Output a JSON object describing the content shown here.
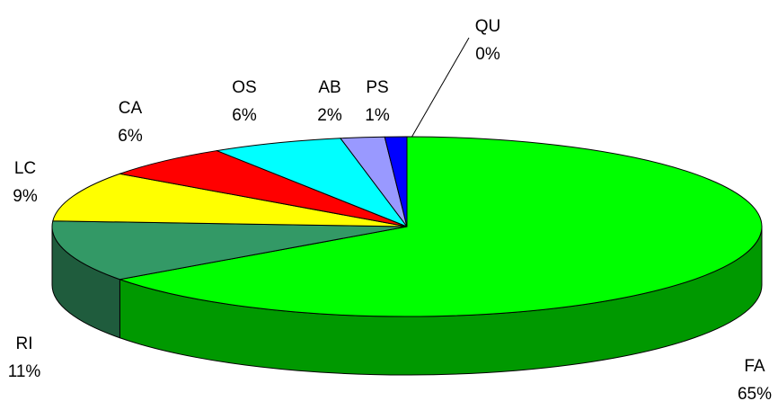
{
  "chart_data": {
    "type": "pie3d",
    "categories": [
      "FA",
      "RI",
      "LC",
      "CA",
      "OS",
      "AB",
      "PS",
      "QU"
    ],
    "values": [
      65,
      11,
      9,
      6,
      6,
      2,
      1,
      0
    ],
    "value_labels": [
      "65%",
      "11%",
      "9%",
      "6%",
      "6%",
      "2%",
      "1%",
      "0%"
    ],
    "colors": [
      "#00ff00",
      "#339966",
      "#ffff00",
      "#ff0000",
      "#00ffff",
      "#9999ff",
      "#0000ff",
      "#c0c0c0"
    ]
  }
}
